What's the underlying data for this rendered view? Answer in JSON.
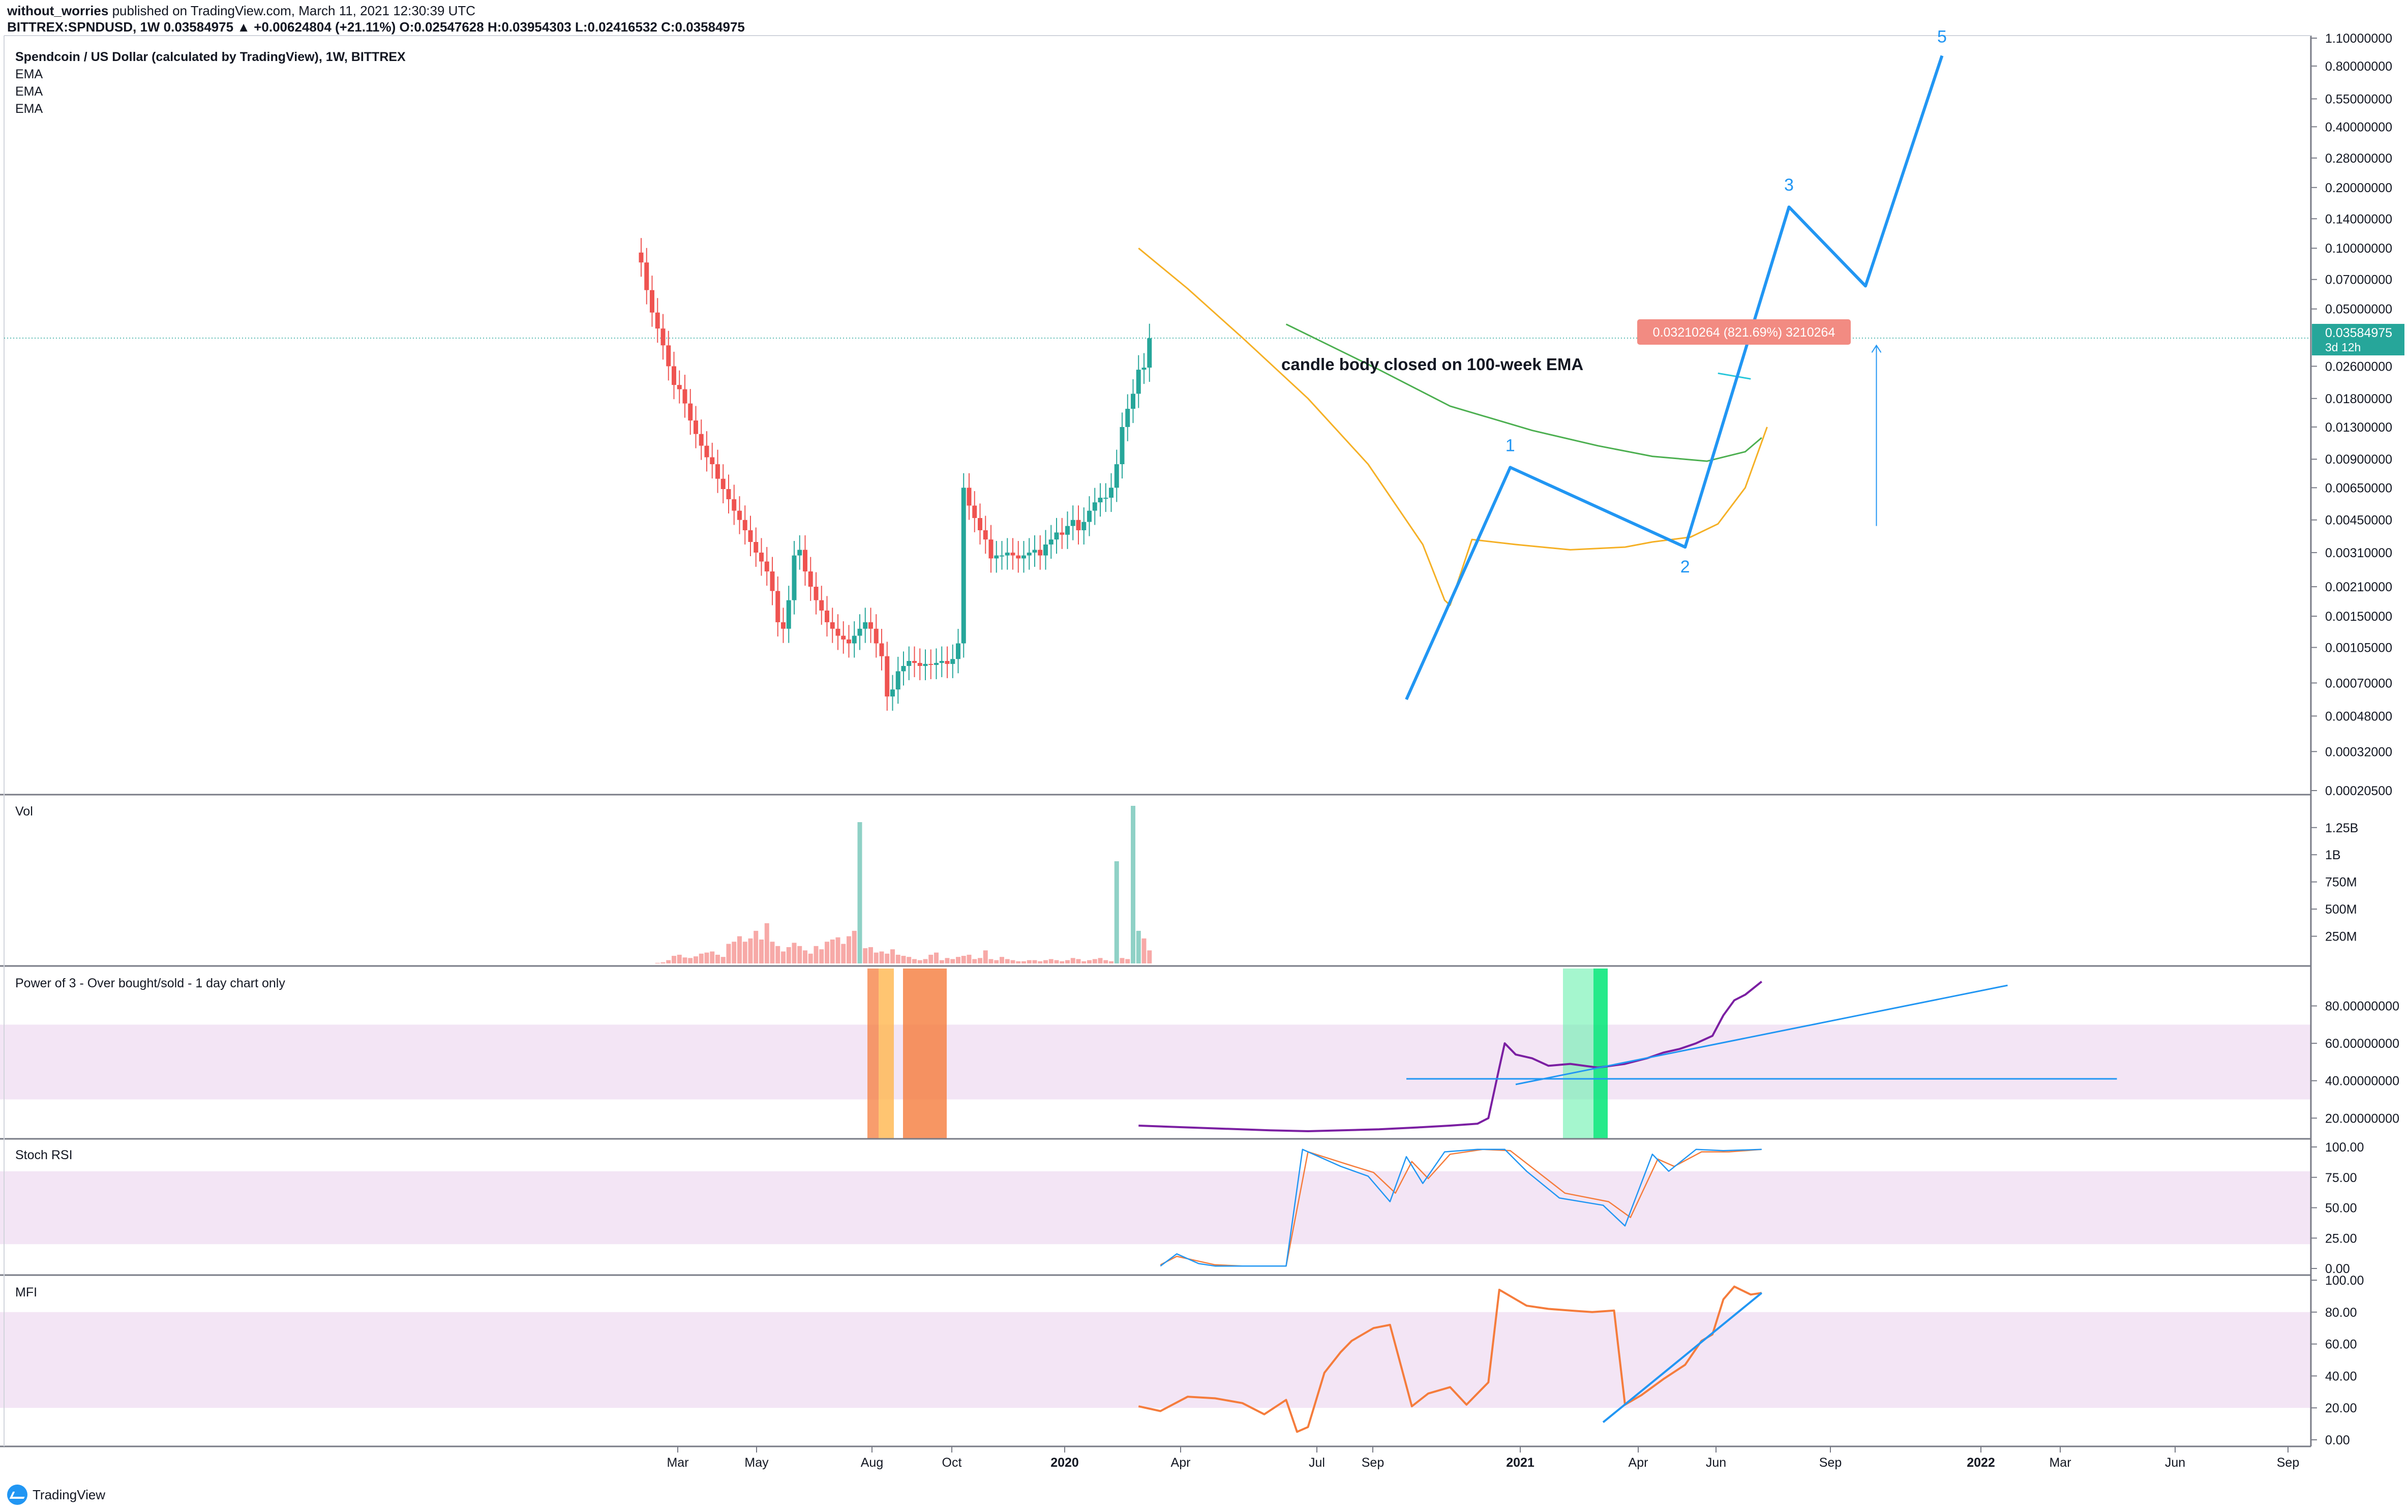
{
  "header": {
    "author": "without_worries",
    "published": "published on TradingView.com, March 11, 2021 12:30:39 UTC",
    "ohlc_line": "BITTREX:SPNDUSD, 1W  0.03584975 ▲ +0.00624804 (+21.11%) O:0.02547628 H:0.03954303 L:0.02416532 C:0.03584975"
  },
  "legend": {
    "title": "Spendcoin / US Dollar (calculated by TradingView), 1W, BITTREX",
    "items": [
      "EMA",
      "EMA",
      "EMA"
    ]
  },
  "panes": {
    "vol": "Vol",
    "power": "Power of 3 - Over bought/sold - 1 day chart only",
    "stoch": "Stoch RSI",
    "mfi": "MFI"
  },
  "annotations": {
    "ema_note": "candle body closed on 100-week EMA",
    "target_box": "0.03210264 (821.69%) 3210264",
    "wave_labels": [
      "1",
      "2",
      "3",
      "5"
    ]
  },
  "price_badge": {
    "value": "0.03584975",
    "timer": "3d 12h"
  },
  "footer": {
    "brand": "TradingView"
  },
  "colors": {
    "up": "#26a69a",
    "down": "#ef5350",
    "ema_short": "#f5b025",
    "ema_long": "#4caf50",
    "wave": "#2196f3",
    "power_line": "#7b1fa2",
    "mfi_line": "#f57c3c",
    "stoch_k": "#2196f3",
    "stoch_d": "#f57c3c",
    "band_fill": "#f3e5f5"
  },
  "chart_data": {
    "type": "candlestick",
    "symbol": "BITTREX:SPNDUSD",
    "interval": "1W",
    "scale": "log",
    "x_ticks": [
      "Mar",
      "May",
      "Aug",
      "Oct",
      "2020",
      "Apr",
      "Jul",
      "Sep",
      "2021",
      "Apr",
      "Jun",
      "Sep",
      "2022",
      "Mar",
      "Jun",
      "Sep"
    ],
    "price_ticks": [
      "1.10000000",
      "0.80000000",
      "0.55000000",
      "0.40000000",
      "0.28000000",
      "0.20000000",
      "0.14000000",
      "0.10000000",
      "0.07000000",
      "0.05000000",
      "0.03584975",
      "0.02600000",
      "0.01800000",
      "0.01300000",
      "0.00900000",
      "0.00650000",
      "0.00450000",
      "0.00310000",
      "0.00210000",
      "0.00150000",
      "0.00105000",
      "0.00070000",
      "0.00048000",
      "0.00032000",
      "0.00020500"
    ],
    "price_tick_values": [
      1.1,
      0.8,
      0.55,
      0.4,
      0.28,
      0.2,
      0.14,
      0.1,
      0.07,
      0.05,
      0.03584975,
      0.026,
      0.018,
      0.013,
      0.009,
      0.0065,
      0.0045,
      0.0031,
      0.0021,
      0.0015,
      0.00105,
      0.0007,
      0.00048,
      0.00032,
      0.000205
    ],
    "volume_ticks": [
      "1.25B",
      "1B",
      "750M",
      "500M",
      "250M"
    ],
    "power_ticks": [
      "80.00000000",
      "60.00000000",
      "40.00000000",
      "20.00000000"
    ],
    "stoch_ticks": [
      "100.00",
      "75.00",
      "50.00",
      "25.00",
      "0.00"
    ],
    "mfi_ticks": [
      "100.00",
      "80.00",
      "60.00",
      "40.00",
      "20.00",
      "0.00"
    ],
    "closes": [
      0.085,
      0.062,
      0.048,
      0.04,
      0.033,
      0.026,
      0.021,
      0.02,
      0.017,
      0.014,
      0.012,
      0.0105,
      0.0092,
      0.0085,
      0.0072,
      0.0064,
      0.0057,
      0.005,
      0.0045,
      0.004,
      0.0035,
      0.0031,
      0.0028,
      0.0025,
      0.002,
      0.0014,
      0.0013,
      0.0018,
      0.003,
      0.0032,
      0.0025,
      0.0021,
      0.0018,
      0.0016,
      0.0014,
      0.0013,
      0.0012,
      0.00115,
      0.0011,
      0.0012,
      0.0013,
      0.0014,
      0.0013,
      0.0011,
      0.00095,
      0.0006,
      0.00065,
      0.0008,
      0.00085,
      0.0009,
      0.00088,
      0.00085,
      0.00087,
      0.00086,
      0.00088,
      0.0009,
      0.00087,
      0.00092,
      0.0011,
      0.0065,
      0.0053,
      0.0046,
      0.004,
      0.0036,
      0.0029,
      0.003,
      0.003,
      0.0031,
      0.003,
      0.0029,
      0.003,
      0.0031,
      0.0032,
      0.003,
      0.0034,
      0.0036,
      0.0039,
      0.0038,
      0.0042,
      0.0045,
      0.004,
      0.0044,
      0.005,
      0.0055,
      0.0058,
      0.0058,
      0.0065,
      0.0085,
      0.013,
      0.016,
      0.019,
      0.025,
      0.0256,
      0.0358
    ],
    "ema_short": {
      "x": [
        91,
        100,
        110,
        122,
        133,
        143,
        147,
        148,
        152,
        160,
        170,
        180,
        185,
        192,
        197,
        202,
        206
      ],
      "y": [
        0.1,
        0.063,
        0.036,
        0.018,
        0.0085,
        0.0034,
        0.0018,
        0.0017,
        0.0036,
        0.0034,
        0.0032,
        0.0033,
        0.0035,
        0.0037,
        0.0043,
        0.0065,
        0.013
      ]
    },
    "ema_long": {
      "x": [
        118,
        135,
        148,
        163,
        175,
        185,
        195,
        202,
        205
      ],
      "y": [
        0.042,
        0.025,
        0.0165,
        0.0125,
        0.0105,
        0.0093,
        0.0088,
        0.0098,
        0.0115
      ]
    },
    "ema_mid": {
      "x": [
        197,
        203
      ],
      "y": [
        0.024,
        0.0225
      ]
    },
    "elliott_wave": {
      "points": [
        {
          "label": "",
          "x": 140,
          "y": 0.00058
        },
        {
          "label": "1",
          "x": 159,
          "y": 0.0082
        },
        {
          "label": "2",
          "x": 191,
          "y": 0.0033
        },
        {
          "label": "3",
          "x": 210,
          "y": 0.16
        },
        {
          "label": "",
          "x": 224,
          "y": 0.065
        },
        {
          "label": "5",
          "x": 238,
          "y": 0.9
        }
      ]
    },
    "projection_arrow": {
      "x": 226,
      "from": 0.0042,
      "to": 0.033
    },
    "volume_millions": [
      5,
      10,
      30,
      70,
      80,
      55,
      50,
      65,
      90,
      100,
      110,
      80,
      60,
      180,
      200,
      250,
      200,
      230,
      300,
      220,
      370,
      200,
      160,
      110,
      150,
      190,
      160,
      120,
      90,
      160,
      130,
      200,
      220,
      240,
      180,
      250,
      300,
      1300,
      140,
      150,
      100,
      110,
      90,
      130,
      80,
      70,
      60,
      40,
      30,
      40,
      80,
      100,
      30,
      50,
      40,
      60,
      70,
      80,
      40,
      50,
      120,
      40,
      30,
      60,
      40,
      30,
      20,
      20,
      30,
      30,
      20,
      30,
      40,
      30,
      20,
      30,
      50,
      40,
      20,
      30,
      40,
      50,
      30,
      20,
      940,
      50,
      40,
      1450,
      300,
      230,
      120
    ],
    "power_of_3": {
      "x": [
        91,
        105,
        115,
        122,
        135,
        142,
        148,
        153,
        155,
        157,
        158,
        160,
        163,
        166,
        170,
        175,
        180,
        184,
        187,
        190,
        193,
        196,
        198,
        200,
        202,
        205
      ],
      "y": [
        16,
        14.5,
        13.5,
        13,
        14,
        15,
        16,
        17,
        20,
        47,
        60,
        54,
        52,
        48,
        49,
        47,
        49,
        52,
        55,
        57,
        60,
        64,
        75,
        83,
        86,
        93
      ]
    },
    "stoch_k": {
      "x": [
        95,
        98,
        102,
        105,
        110,
        118,
        121,
        128,
        133,
        137,
        140,
        143,
        147,
        153,
        158,
        162,
        168,
        176,
        180,
        185,
        188,
        193,
        198,
        205
      ],
      "y": [
        2,
        12,
        4,
        2,
        2,
        2,
        98,
        84,
        76,
        55,
        92,
        70,
        96,
        98,
        98,
        80,
        58,
        52,
        35,
        94,
        80,
        98,
        97,
        98
      ]
    },
    "stoch_d": {
      "x": [
        95,
        98,
        102,
        105,
        110,
        118,
        122,
        129,
        134,
        138,
        141,
        144,
        148,
        154,
        159,
        163,
        169,
        177,
        181,
        186,
        189,
        194,
        199,
        205
      ],
      "y": [
        3,
        10,
        6,
        3,
        2,
        2,
        96,
        86,
        79,
        62,
        88,
        74,
        94,
        98,
        97,
        83,
        62,
        55,
        42,
        90,
        84,
        96,
        96,
        98
      ]
    },
    "mfi": {
      "x": [
        91,
        95,
        100,
        105,
        110,
        114,
        118,
        120,
        122,
        125,
        128,
        130,
        134,
        137,
        141,
        144,
        148,
        151,
        155,
        157,
        162,
        166,
        170,
        174,
        178,
        180,
        183,
        187,
        191,
        194,
        196,
        198,
        200,
        203,
        205
      ],
      "y": [
        21,
        18,
        27,
        26,
        23,
        16,
        25,
        5,
        8,
        42,
        55,
        62,
        70,
        72,
        21,
        29,
        33,
        22,
        36,
        94,
        84,
        82,
        81,
        80,
        81,
        22,
        28,
        38,
        47,
        62,
        66,
        88,
        96,
        91,
        92
      ]
    },
    "mfi_trend": {
      "x": [
        176,
        205
      ],
      "y": [
        11,
        92
      ]
    },
    "power_trend": {
      "x": [
        160,
        250
      ],
      "y": [
        38,
        91
      ]
    },
    "power_level": {
      "x": [
        140,
        270
      ],
      "y": 41
    }
  }
}
